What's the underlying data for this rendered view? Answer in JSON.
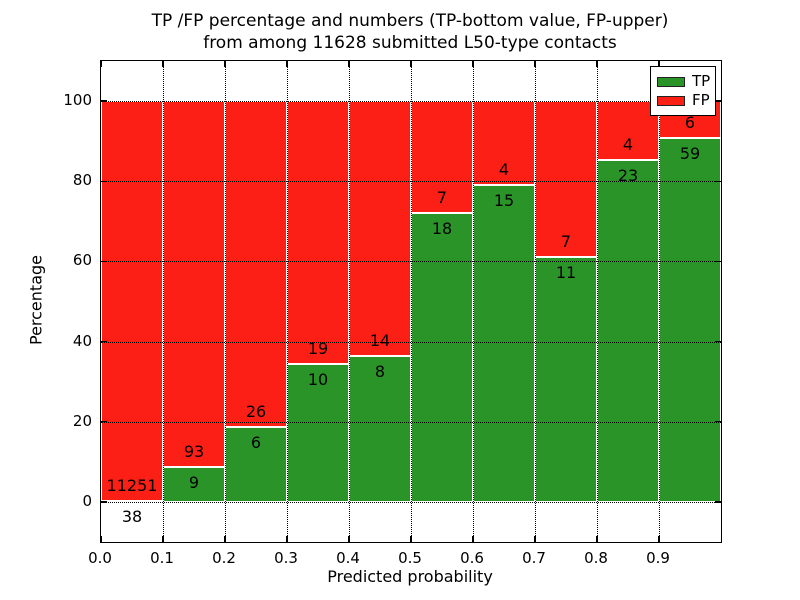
{
  "title": {
    "line1": "TP /FP percentage and numbers (TP-bottom value, FP-upper)",
    "line2": "from among 11628 submitted L50-type contacts"
  },
  "axes": {
    "xlabel": "Predicted probability",
    "ylabel": "Percentage"
  },
  "legend": {
    "items": [
      {
        "label": "TP",
        "color": "#2a9428"
      },
      {
        "label": "FP",
        "color": "#fc1f16"
      }
    ]
  },
  "chart_data": {
    "type": "bar",
    "stacked": true,
    "normalized": "each bin stacks to 100%",
    "title": "TP /FP percentage and numbers (TP-bottom value, FP-upper) from among 11628 submitted L50-type contacts",
    "xlabel": "Predicted probability",
    "ylabel": "Percentage",
    "x_tick_labels": [
      "0.0",
      "0.1",
      "0.2",
      "0.3",
      "0.4",
      "0.5",
      "0.6",
      "0.7",
      "0.8",
      "0.9"
    ],
    "y_tick_values": [
      0,
      20,
      40,
      60,
      80,
      100
    ],
    "xlim": [
      0.0,
      1.0
    ],
    "ylim": [
      -10,
      110
    ],
    "bin_width": 0.1,
    "categories": [
      "0.0-0.1",
      "0.1-0.2",
      "0.2-0.3",
      "0.3-0.4",
      "0.4-0.5",
      "0.5-0.6",
      "0.6-0.7",
      "0.7-0.8",
      "0.8-0.9",
      "0.9-1.0"
    ],
    "series": [
      {
        "name": "TP",
        "color": "#2a9428",
        "counts": [
          38,
          9,
          6,
          10,
          8,
          18,
          15,
          11,
          23,
          59
        ]
      },
      {
        "name": "FP",
        "color": "#fc1f16",
        "counts": [
          11251,
          93,
          26,
          19,
          14,
          7,
          4,
          7,
          4,
          6
        ]
      }
    ],
    "tp_percent_of_bin": [
      0.34,
      8.82,
      18.75,
      34.48,
      36.36,
      72.0,
      78.95,
      61.11,
      85.19,
      90.77
    ],
    "grid": "dotted",
    "legend_position": "upper right"
  }
}
